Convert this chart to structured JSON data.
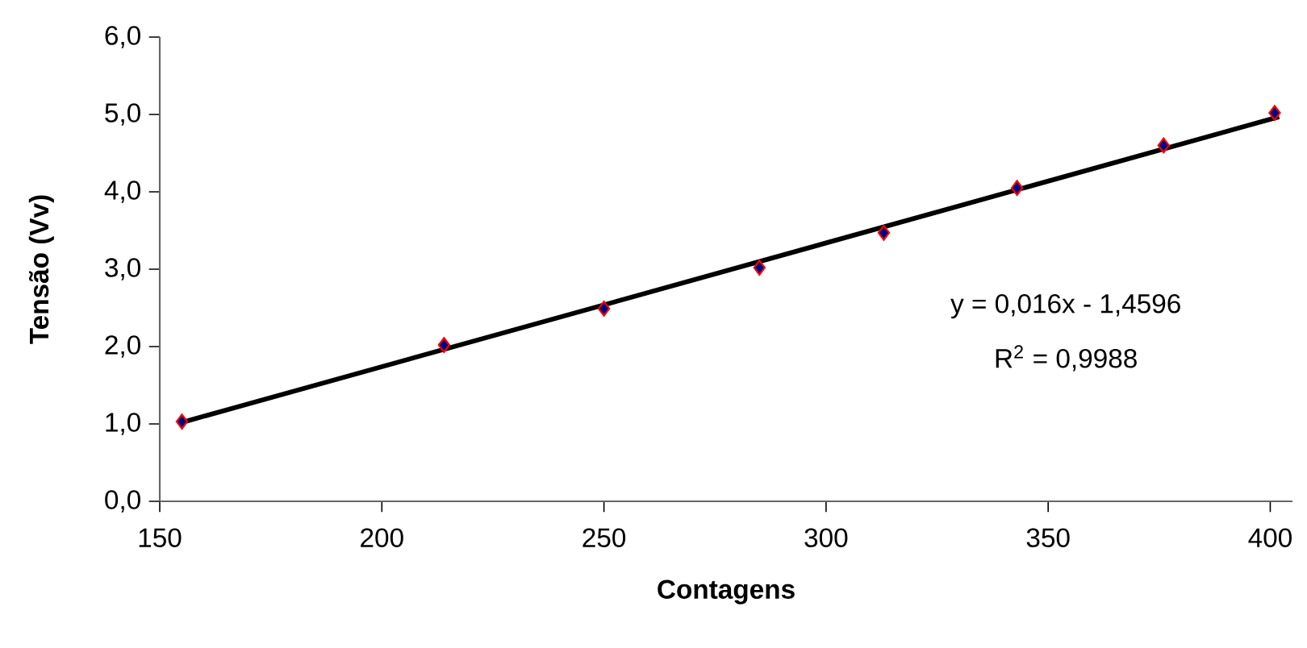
{
  "chart_data": {
    "type": "scatter",
    "xlabel": "Contagens",
    "ylabel": "Tensão (Vv)",
    "xlim": [
      150,
      405
    ],
    "ylim": [
      0,
      6
    ],
    "xticks": [
      150,
      200,
      250,
      300,
      350,
      400
    ],
    "yticks": [
      {
        "value": 0,
        "label": "0,0"
      },
      {
        "value": 1,
        "label": "1,0"
      },
      {
        "value": 2,
        "label": "2,0"
      },
      {
        "value": 3,
        "label": "3,0"
      },
      {
        "value": 4,
        "label": "4,0"
      },
      {
        "value": 5,
        "label": "5,0"
      },
      {
        "value": 6,
        "label": "6,0"
      }
    ],
    "series": [
      {
        "color": "#000080",
        "marker": "diamond",
        "x": [
          155,
          214,
          250,
          285,
          313,
          343,
          376,
          401
        ],
        "values": [
          1.03,
          2.02,
          2.49,
          3.02,
          3.47,
          4.05,
          4.6,
          5.02
        ]
      },
      {
        "type": "line",
        "color": "#000000",
        "marker": "none",
        "line_style": "solid",
        "x": [
          155,
          402
        ],
        "values": [
          1.02,
          4.97
        ]
      }
    ],
    "annotations": [
      "y = 0,016x - 1,4596",
      "R$^{2}$ = 0,9988"
    ]
  }
}
